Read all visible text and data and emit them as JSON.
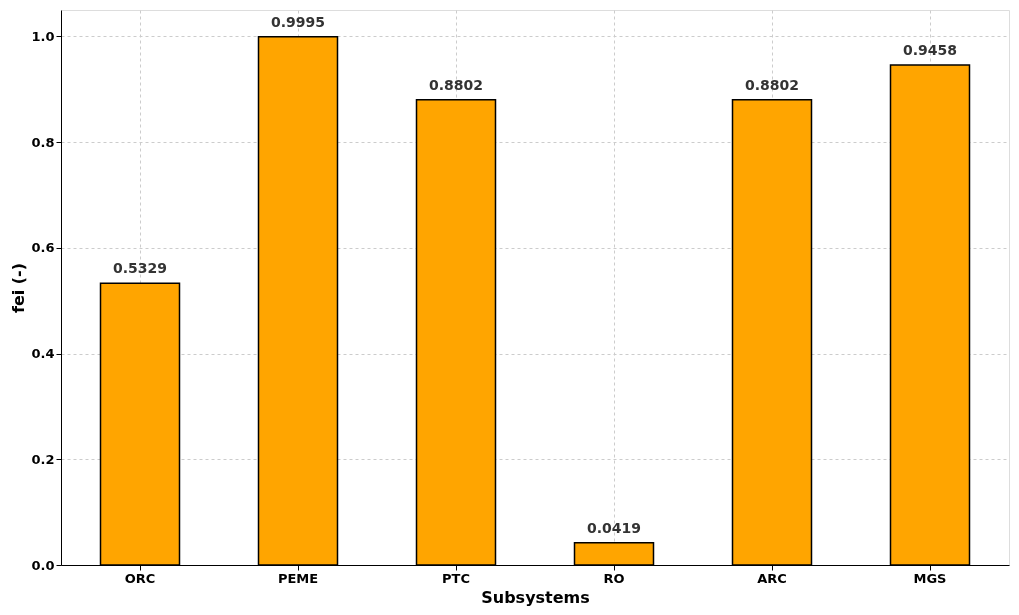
{
  "chart_data": {
    "type": "bar",
    "xlabel": "Subsystems",
    "ylabel": "fei (-)",
    "categories": [
      "ORC",
      "PEME",
      "PTC",
      "RO",
      "ARC",
      "MGS"
    ],
    "values": [
      0.5329,
      0.9995,
      0.8802,
      0.0419,
      0.8802,
      0.9458
    ],
    "color": "#ffa500",
    "ylim": [
      0,
      1.05
    ],
    "yticks": [
      {
        "value": 0,
        "label": "0.0"
      },
      0.2,
      0.4,
      0.6,
      0.8,
      {
        "value": 1,
        "label": "1.0"
      }
    ],
    "value_labels": [
      "0.5329",
      "0.9995",
      "0.8802",
      "0.0419",
      "0.8802",
      "0.9458"
    ],
    "grid": true
  }
}
